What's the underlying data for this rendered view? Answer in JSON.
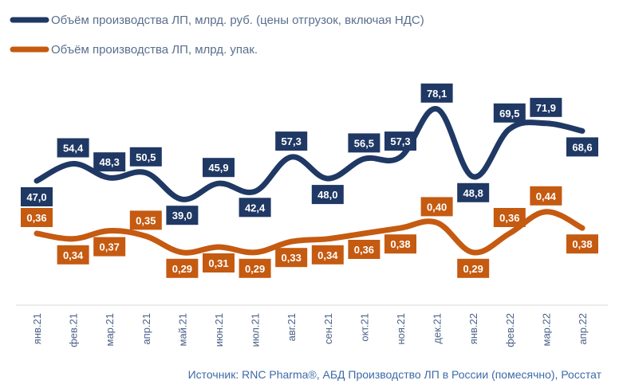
{
  "chart_data": {
    "type": "line",
    "categories": [
      "янв.21",
      "фев.21",
      "мар.21",
      "апр.21",
      "май.21",
      "июн.21",
      "июл.21",
      "авг.21",
      "сен.21",
      "окт.21",
      "ноя.21",
      "дек.21",
      "янв.22",
      "фев.22",
      "мар.22",
      "апр.22"
    ],
    "series": [
      {
        "name": "Объём производства ЛП, млрд. руб. (цены отгрузок, включая НДС)",
        "color": "#1f3864",
        "values": [
          47.0,
          54.4,
          48.3,
          50.5,
          39.0,
          45.9,
          42.4,
          57.3,
          48.0,
          56.5,
          57.3,
          78.1,
          48.8,
          69.5,
          71.9,
          68.6
        ],
        "labels": [
          "47,0",
          "54,4",
          "48,3",
          "50,5",
          "39,0",
          "45,9",
          "42,4",
          "57,3",
          "48,0",
          "56,5",
          "57,3",
          "78,1",
          "48,8",
          "69,5",
          "71,9",
          "68,6"
        ]
      },
      {
        "name": "Объём производства ЛП, млрд. упак.",
        "color": "#c55a11",
        "values": [
          0.36,
          0.34,
          0.37,
          0.35,
          0.29,
          0.31,
          0.29,
          0.33,
          0.34,
          0.36,
          0.38,
          0.4,
          0.29,
          0.36,
          0.44,
          0.38
        ],
        "labels": [
          "0,36",
          "0,34",
          "0,37",
          "0,35",
          "0,29",
          "0,31",
          "0,29",
          "0,33",
          "0,34",
          "0,36",
          "0,38",
          "0,40",
          "0,29",
          "0,36",
          "0,44",
          "0,38"
        ]
      }
    ],
    "legend_position": "top-left",
    "grid": false
  },
  "source": "Источник: RNC Pharma®, АБД Производство ЛП в России (помесячно), Росстат"
}
